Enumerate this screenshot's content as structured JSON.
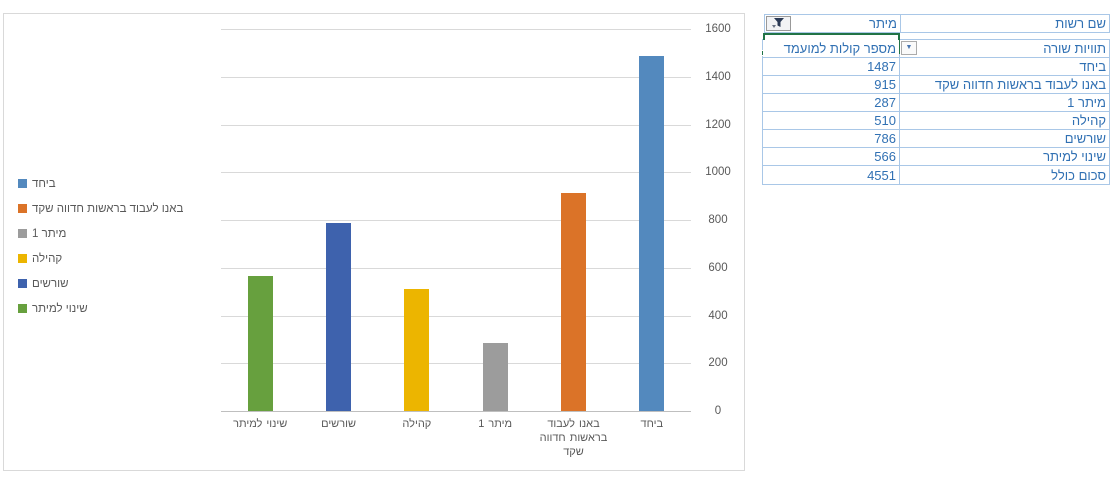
{
  "chart_data": {
    "type": "bar",
    "title": "",
    "xlabel": "",
    "ylabel": "",
    "categories": [
      "ביחד",
      "באנו לעבוד בראשות חדווה שקד",
      "מיתר 1",
      "קהילה",
      "שורשים",
      "שינוי למיתר"
    ],
    "values": [
      1487,
      915,
      287,
      510,
      786,
      566
    ],
    "colors": [
      "#5389be",
      "#db7328",
      "#9c9c9c",
      "#ecb500",
      "#3e62ad",
      "#67a03e"
    ],
    "ylim": [
      0,
      1600
    ],
    "yticks": [
      0,
      200,
      400,
      600,
      800,
      1000,
      1200,
      1400,
      1600
    ],
    "grid": true,
    "axis_direction": "rtl",
    "legend_position": "left",
    "legend": [
      {
        "label": "ביחד",
        "color": "#5389be"
      },
      {
        "label": "באנו לעבוד בראשות חדווה שקד",
        "color": "#db7328"
      },
      {
        "label": "מיתר 1",
        "color": "#9c9c9c"
      },
      {
        "label": "קהילה",
        "color": "#ecb500"
      },
      {
        "label": "שורשים",
        "color": "#3e62ad"
      },
      {
        "label": "שינוי למיתר",
        "color": "#67a03e"
      }
    ]
  },
  "pivot": {
    "filter_row": {
      "label": "שם רשות",
      "value": "מיתר",
      "filter_icon": "funnel-filter-icon"
    },
    "selected_cell_value": "",
    "header": {
      "row_labels": "תוויות שורה",
      "values_label": "מספר קולות למועמד",
      "dropdown_icon": "chevron-down-icon"
    },
    "rows": [
      {
        "label": "ביחד",
        "value": "1487"
      },
      {
        "label": "באנו לעבוד בראשות חדווה שקד",
        "value": "915"
      },
      {
        "label": "מיתר 1",
        "value": "287"
      },
      {
        "label": "קהילה",
        "value": "510"
      },
      {
        "label": "שורשים",
        "value": "786"
      },
      {
        "label": "שינוי למיתר",
        "value": "566"
      }
    ],
    "total": {
      "label": "סכום כולל",
      "value": "4551"
    }
  },
  "colors": {
    "selection_green": "#217346",
    "table_text_blue": "#3070b3",
    "table_border_blue": "#a9c7e7",
    "gridline_gray": "#d9d9d9",
    "axis_gray": "#bfbfbf",
    "chart_text_gray": "#595959"
  }
}
